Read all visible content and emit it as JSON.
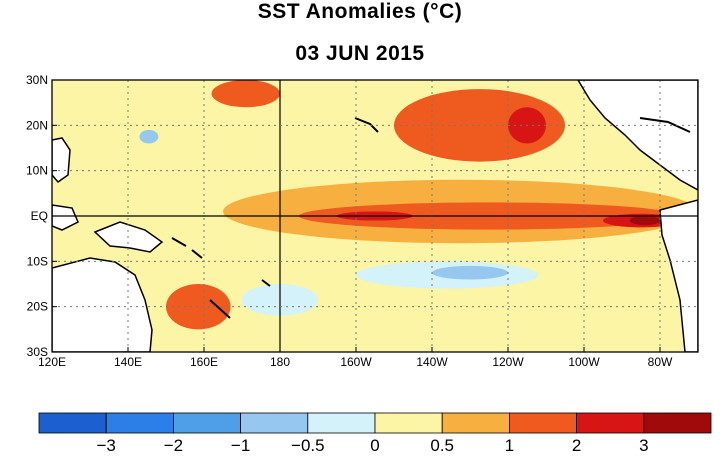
{
  "chart_data": {
    "type": "heatmap",
    "title": "SST Anomalies (°C)",
    "subtitle": "03 JUN 2015",
    "units": "°C",
    "x_axis": {
      "range_deg_east": [
        120,
        290
      ],
      "ticks": [
        {
          "lon": 120,
          "label": "120E"
        },
        {
          "lon": 140,
          "label": "140E"
        },
        {
          "lon": 160,
          "label": "160E"
        },
        {
          "lon": 180,
          "label": "180"
        },
        {
          "lon": 200,
          "label": "160W"
        },
        {
          "lon": 220,
          "label": "140W"
        },
        {
          "lon": 240,
          "label": "120W"
        },
        {
          "lon": 260,
          "label": "100W"
        },
        {
          "lon": 280,
          "label": "80W"
        }
      ]
    },
    "y_axis": {
      "range_deg": [
        -30,
        30
      ],
      "ticks": [
        {
          "lat": 30,
          "label": "30N"
        },
        {
          "lat": 20,
          "label": "20N"
        },
        {
          "lat": 10,
          "label": "10N"
        },
        {
          "lat": 0,
          "label": "EQ"
        },
        {
          "lat": -10,
          "label": "10S"
        },
        {
          "lat": -20,
          "label": "20S"
        },
        {
          "lat": -30,
          "label": "30S"
        }
      ]
    },
    "colorbar": {
      "bins": [
        {
          "color": "#1c5fd1"
        },
        {
          "color": "#2c7fe6"
        },
        {
          "color": "#4f9ee8"
        },
        {
          "color": "#96c8ef"
        },
        {
          "color": "#d4f2f9"
        },
        {
          "color": "#fdf5a6"
        },
        {
          "color": "#f7b040"
        },
        {
          "color": "#ef5a1e"
        },
        {
          "color": "#d71515"
        },
        {
          "color": "#a00a0a"
        }
      ],
      "labels": [
        {
          "after_bin": 1,
          "text": "−3"
        },
        {
          "after_bin": 2,
          "text": "−2"
        },
        {
          "after_bin": 3,
          "text": "−1"
        },
        {
          "after_bin": 4,
          "text": "−0.5"
        },
        {
          "after_bin": 5,
          "text": "0"
        },
        {
          "after_bin": 6,
          "text": "0.5"
        },
        {
          "after_bin": 7,
          "text": "1"
        },
        {
          "after_bin": 8,
          "text": "2"
        },
        {
          "after_bin": 9,
          "text": "3"
        }
      ]
    },
    "anomaly_regions": [
      {
        "name": "equatorial-warm-band",
        "bin": 6,
        "lon": [
          165,
          290
        ],
        "lat": [
          -6,
          8
        ]
      },
      {
        "name": "equatorial-strong-warm",
        "bin": 7,
        "lon": [
          185,
          285
        ],
        "lat": [
          -3,
          3
        ]
      },
      {
        "name": "equatorial-peak-1",
        "bin": 8,
        "lon": [
          195,
          215
        ],
        "lat": [
          -1,
          1
        ]
      },
      {
        "name": "equatorial-peak-east",
        "bin": 8,
        "lon": [
          265,
          285
        ],
        "lat": [
          -2.5,
          0.5
        ]
      },
      {
        "name": "equatorial-peak-core",
        "bin": 9,
        "lon": [
          272,
          280
        ],
        "lat": [
          -2,
          0
        ]
      },
      {
        "name": "ne-pacific-warm",
        "bin": 7,
        "lon": [
          210,
          255
        ],
        "lat": [
          12,
          28
        ]
      },
      {
        "name": "ne-pacific-hotspot",
        "bin": 8,
        "lon": [
          240,
          250
        ],
        "lat": [
          16,
          24
        ]
      },
      {
        "name": "nw-pacific-warm",
        "bin": 7,
        "lon": [
          162,
          180
        ],
        "lat": [
          24,
          30
        ]
      },
      {
        "name": "sw-pacific-warm",
        "bin": 7,
        "lon": [
          150,
          167
        ],
        "lat": [
          -25,
          -15
        ]
      },
      {
        "name": "central-south-cool",
        "bin": 4,
        "lon": [
          200,
          248
        ],
        "lat": [
          -16,
          -10
        ]
      },
      {
        "name": "central-south-cool-2",
        "bin": 3,
        "lon": [
          220,
          240
        ],
        "lat": [
          -14,
          -11
        ]
      },
      {
        "name": "north-central-cool",
        "bin": 3,
        "lon": [
          143,
          148
        ],
        "lat": [
          16,
          19
        ]
      },
      {
        "name": "south-cool-patch",
        "bin": 4,
        "lon": [
          170,
          190
        ],
        "lat": [
          -22,
          -15
        ]
      }
    ]
  }
}
